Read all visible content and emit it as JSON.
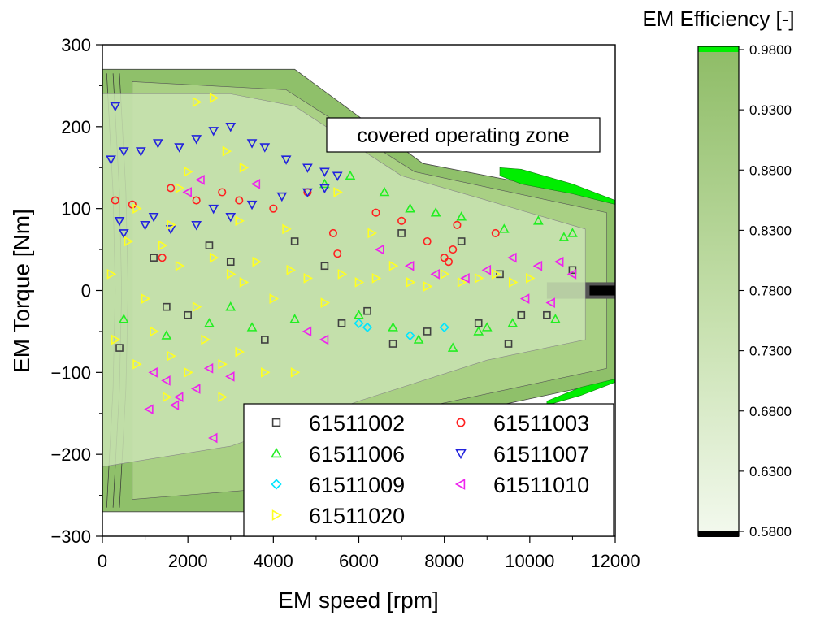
{
  "chart_data": {
    "type": "scatter",
    "title": "",
    "xlabel": "EM speed [rpm]",
    "ylabel": "EM Torque [Nm]",
    "xlim": [
      0,
      12000
    ],
    "ylim": [
      -300,
      300
    ],
    "x_ticks": [
      "0",
      "2000",
      "4000",
      "6000",
      "8000",
      "10000",
      "12000"
    ],
    "y_ticks": [
      "300",
      "200",
      "100",
      "0",
      "−100",
      "−200",
      "−300"
    ],
    "annotation": "covered operating zone",
    "efficiency_envelope": {
      "motor_corner_points": [
        [
          0,
          270
        ],
        [
          4500,
          270
        ],
        [
          7500,
          155
        ],
        [
          12000,
          110
        ]
      ],
      "generator_corner_points": [
        [
          0,
          -270
        ],
        [
          4500,
          -270
        ],
        [
          7500,
          -160
        ],
        [
          12000,
          -110
        ]
      ],
      "max_speed_rpm": 12000
    },
    "covered_zone": {
      "upper": [
        [
          0,
          240
        ],
        [
          3000,
          240
        ],
        [
          4500,
          225
        ],
        [
          7000,
          140
        ],
        [
          9000,
          110
        ],
        [
          11300,
          75
        ]
      ],
      "lower": [
        [
          0,
          -215
        ],
        [
          3000,
          -190
        ],
        [
          6000,
          -135
        ],
        [
          9000,
          -85
        ],
        [
          11300,
          -60
        ]
      ]
    },
    "colorbar": {
      "title": "EM Efficiency [-]",
      "min": 0.58,
      "max": 0.98,
      "ticks": [
        "0.9800",
        "0.9300",
        "0.8800",
        "0.8300",
        "0.7800",
        "0.7300",
        "0.6800",
        "0.6300",
        "0.5800"
      ],
      "color_high": "#00ee00",
      "color_mid": "#8fc06a",
      "color_low": "#f2f8ec",
      "color_min": "#000000"
    },
    "legend": {
      "placement": "bottom-right",
      "entries": [
        {
          "name": "61511002",
          "marker": "square",
          "color": "#404040"
        },
        {
          "name": "61511003",
          "marker": "circle",
          "color": "#ff2020"
        },
        {
          "name": "61511006",
          "marker": "triangle-up",
          "color": "#22ee22"
        },
        {
          "name": "61511007",
          "marker": "triangle-down",
          "color": "#2222dd"
        },
        {
          "name": "61511009",
          "marker": "diamond",
          "color": "#00e5ff"
        },
        {
          "name": "61511010",
          "marker": "triangle-left",
          "color": "#ee22ee"
        },
        {
          "name": "61511020",
          "marker": "triangle-right",
          "color": "#ffff22"
        }
      ]
    },
    "series": [
      {
        "name": "61511002",
        "color": "#404040",
        "marker": "square",
        "points": [
          [
            400,
            -70
          ],
          [
            1500,
            -20
          ],
          [
            2500,
            55
          ],
          [
            3000,
            35
          ],
          [
            3800,
            -60
          ],
          [
            4500,
            60
          ],
          [
            5200,
            30
          ],
          [
            5600,
            -40
          ],
          [
            6200,
            -25
          ],
          [
            7000,
            70
          ],
          [
            7600,
            -50
          ],
          [
            8400,
            60
          ],
          [
            8800,
            -40
          ],
          [
            9300,
            20
          ],
          [
            9800,
            -30
          ],
          [
            10400,
            -30
          ],
          [
            11000,
            25
          ],
          [
            1200,
            40
          ],
          [
            2000,
            -30
          ],
          [
            6800,
            -65
          ],
          [
            9500,
            -65
          ]
        ]
      },
      {
        "name": "61511003",
        "color": "#ff2020",
        "marker": "circle",
        "points": [
          [
            300,
            110
          ],
          [
            700,
            105
          ],
          [
            1600,
            125
          ],
          [
            2200,
            110
          ],
          [
            2800,
            120
          ],
          [
            4000,
            100
          ],
          [
            4800,
            120
          ],
          [
            5400,
            70
          ],
          [
            6400,
            95
          ],
          [
            7000,
            85
          ],
          [
            7600,
            60
          ],
          [
            8100,
            35
          ],
          [
            8300,
            80
          ],
          [
            9200,
            70
          ],
          [
            3200,
            110
          ],
          [
            1400,
            40
          ],
          [
            5500,
            45
          ],
          [
            8200,
            50
          ],
          [
            8000,
            40
          ]
        ]
      },
      {
        "name": "61511006",
        "color": "#22ee22",
        "marker": "triangle-up",
        "points": [
          [
            500,
            -35
          ],
          [
            1500,
            -55
          ],
          [
            2500,
            -40
          ],
          [
            3500,
            -45
          ],
          [
            4500,
            -35
          ],
          [
            5200,
            130
          ],
          [
            5800,
            140
          ],
          [
            6600,
            120
          ],
          [
            7200,
            100
          ],
          [
            7800,
            95
          ],
          [
            8400,
            90
          ],
          [
            9000,
            -45
          ],
          [
            9600,
            -40
          ],
          [
            10200,
            85
          ],
          [
            10600,
            -35
          ],
          [
            11000,
            70
          ],
          [
            6000,
            -30
          ],
          [
            7400,
            -60
          ],
          [
            8200,
            -70
          ],
          [
            8800,
            -50
          ],
          [
            9400,
            75
          ],
          [
            10800,
            65
          ],
          [
            3000,
            -20
          ],
          [
            6800,
            -45
          ]
        ]
      },
      {
        "name": "61511007",
        "color": "#2222dd",
        "marker": "triangle-down",
        "points": [
          [
            200,
            160
          ],
          [
            300,
            225
          ],
          [
            500,
            170
          ],
          [
            900,
            170
          ],
          [
            1300,
            180
          ],
          [
            1800,
            175
          ],
          [
            2200,
            185
          ],
          [
            2600,
            195
          ],
          [
            3000,
            200
          ],
          [
            3500,
            180
          ],
          [
            3800,
            175
          ],
          [
            4300,
            160
          ],
          [
            4800,
            150
          ],
          [
            5200,
            145
          ],
          [
            500,
            70
          ],
          [
            1000,
            80
          ],
          [
            1600,
            75
          ],
          [
            2200,
            80
          ],
          [
            3000,
            90
          ],
          [
            3500,
            105
          ],
          [
            4200,
            115
          ],
          [
            4800,
            120
          ],
          [
            5200,
            125
          ],
          [
            5500,
            140
          ],
          [
            1200,
            90
          ],
          [
            400,
            85
          ],
          [
            2600,
            100
          ]
        ]
      },
      {
        "name": "61511009",
        "color": "#00e5ff",
        "marker": "diamond",
        "points": [
          [
            6000,
            -40
          ],
          [
            6200,
            -45
          ],
          [
            7200,
            -55
          ],
          [
            8000,
            -45
          ]
        ]
      },
      {
        "name": "61511010",
        "color": "#ee22ee",
        "marker": "triangle-left",
        "points": [
          [
            1200,
            -100
          ],
          [
            1500,
            -110
          ],
          [
            1800,
            -130
          ],
          [
            2200,
            -120
          ],
          [
            2500,
            -95
          ],
          [
            3000,
            -105
          ],
          [
            1700,
            -140
          ],
          [
            1100,
            -145
          ],
          [
            2300,
            135
          ],
          [
            3600,
            130
          ],
          [
            2600,
            -180
          ],
          [
            4800,
            -50
          ],
          [
            5200,
            -60
          ],
          [
            6500,
            50
          ],
          [
            7200,
            30
          ],
          [
            7800,
            20
          ],
          [
            8500,
            15
          ],
          [
            9000,
            25
          ],
          [
            9600,
            40
          ],
          [
            10200,
            30
          ],
          [
            10700,
            35
          ],
          [
            11000,
            20
          ],
          [
            9900,
            -10
          ],
          [
            10500,
            -15
          ],
          [
            2000,
            120
          ]
        ]
      },
      {
        "name": "61511020",
        "color": "#ffff22",
        "marker": "triangle-right",
        "points": [
          [
            200,
            20
          ],
          [
            600,
            60
          ],
          [
            1000,
            -10
          ],
          [
            1400,
            55
          ],
          [
            1800,
            30
          ],
          [
            2200,
            -20
          ],
          [
            2600,
            40
          ],
          [
            3000,
            20
          ],
          [
            3300,
            10
          ],
          [
            3600,
            35
          ],
          [
            4000,
            -10
          ],
          [
            4400,
            25
          ],
          [
            4800,
            15
          ],
          [
            5200,
            -15
          ],
          [
            5600,
            20
          ],
          [
            6000,
            10
          ],
          [
            6400,
            15
          ],
          [
            6800,
            30
          ],
          [
            7200,
            10
          ],
          [
            7600,
            5
          ],
          [
            8000,
            20
          ],
          [
            8400,
            10
          ],
          [
            8800,
            15
          ],
          [
            9200,
            20
          ],
          [
            9600,
            10
          ],
          [
            10000,
            15
          ],
          [
            300,
            -60
          ],
          [
            800,
            -90
          ],
          [
            1200,
            -50
          ],
          [
            1600,
            -80
          ],
          [
            2000,
            -100
          ],
          [
            2400,
            -60
          ],
          [
            2800,
            -90
          ],
          [
            3200,
            -75
          ],
          [
            3800,
            -100
          ],
          [
            4500,
            -100
          ],
          [
            1500,
            -130
          ],
          [
            2800,
            -130
          ],
          [
            800,
            100
          ],
          [
            1600,
            80
          ],
          [
            3200,
            85
          ],
          [
            4300,
            75
          ],
          [
            2200,
            230
          ],
          [
            2600,
            235
          ],
          [
            2900,
            170
          ],
          [
            3300,
            150
          ],
          [
            2000,
            145
          ],
          [
            1800,
            125
          ],
          [
            5500,
            120
          ],
          [
            6300,
            70
          ]
        ]
      }
    ]
  }
}
